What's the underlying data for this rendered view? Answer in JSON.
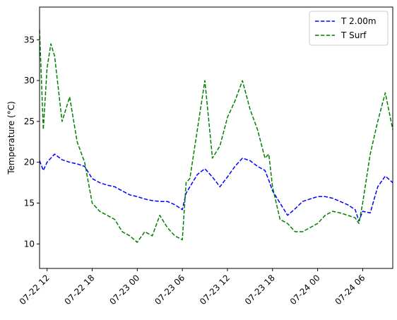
{
  "chart_data": {
    "type": "line",
    "title": "",
    "xlabel": "",
    "ylabel": "Temperature (°C)",
    "x_ticks": [
      "07-22 12",
      "07-22 18",
      "07-23 00",
      "07-23 06",
      "07-23 12",
      "07-23 18",
      "07-24 00",
      "07-24 06"
    ],
    "x_range": [
      "07-22 11",
      "07-24 10"
    ],
    "y_ticks": [
      10,
      15,
      20,
      25,
      30,
      35
    ],
    "ylim": [
      7,
      39
    ],
    "grid": false,
    "legend_position": "top-right",
    "series": [
      {
        "name": "T 2.00m",
        "color": "#0000ff",
        "style": "dashed",
        "x": [
          "07-22 11:00",
          "07-22 11:30",
          "07-22 12:00",
          "07-22 12:30",
          "07-22 13:00",
          "07-22 14:00",
          "07-22 15:00",
          "07-22 16:00",
          "07-22 17:00",
          "07-22 18:00",
          "07-22 19:00",
          "07-22 20:00",
          "07-22 21:00",
          "07-22 22:00",
          "07-22 23:00",
          "07-23 00:00",
          "07-23 01:00",
          "07-23 02:00",
          "07-23 03:00",
          "07-23 04:00",
          "07-23 05:00",
          "07-23 06:00",
          "07-23 06:30",
          "07-23 07:00",
          "07-23 08:00",
          "07-23 09:00",
          "07-23 10:00",
          "07-23 11:00",
          "07-23 12:00",
          "07-23 13:00",
          "07-23 14:00",
          "07-23 15:00",
          "07-23 16:00",
          "07-23 17:00",
          "07-23 17:30",
          "07-23 18:00",
          "07-23 19:00",
          "07-23 20:00",
          "07-23 21:00",
          "07-23 22:00",
          "07-23 23:00",
          "07-24 00:00",
          "07-24 01:00",
          "07-24 02:00",
          "07-24 03:00",
          "07-24 04:00",
          "07-24 05:00",
          "07-24 05:30",
          "07-24 06:00",
          "07-24 07:00",
          "07-24 08:00",
          "07-24 09:00",
          "07-24 10:00"
        ],
        "y": [
          20.2,
          19.0,
          20.0,
          20.5,
          21.0,
          20.3,
          20.0,
          19.8,
          19.5,
          18.0,
          17.5,
          17.2,
          17.0,
          16.5,
          16.0,
          15.8,
          15.5,
          15.3,
          15.2,
          15.2,
          14.8,
          14.2,
          16.2,
          17.0,
          18.5,
          19.2,
          18.2,
          17.0,
          18.2,
          19.5,
          20.5,
          20.2,
          19.5,
          19.0,
          17.8,
          16.5,
          15.0,
          13.5,
          14.3,
          15.2,
          15.5,
          15.8,
          15.8,
          15.6,
          15.2,
          14.8,
          14.2,
          12.8,
          14.0,
          13.8,
          17.0,
          18.3,
          17.5
        ]
      },
      {
        "name": "T Surf",
        "color": "#008000",
        "style": "dashed",
        "x": [
          "07-22 11:00",
          "07-22 11:30",
          "07-22 12:00",
          "07-22 12:30",
          "07-22 13:00",
          "07-22 14:00",
          "07-22 15:00",
          "07-22 16:00",
          "07-22 17:00",
          "07-22 18:00",
          "07-22 19:00",
          "07-22 20:00",
          "07-22 21:00",
          "07-22 22:00",
          "07-22 23:00",
          "07-23 00:00",
          "07-23 01:00",
          "07-23 02:00",
          "07-23 03:00",
          "07-23 04:00",
          "07-23 05:00",
          "07-23 06:00",
          "07-23 06:30",
          "07-23 07:00",
          "07-23 08:00",
          "07-23 09:00",
          "07-23 10:00",
          "07-23 11:00",
          "07-23 12:00",
          "07-23 13:00",
          "07-23 14:00",
          "07-23 15:00",
          "07-23 16:00",
          "07-23 17:00",
          "07-23 17:30",
          "07-23 18:00",
          "07-23 19:00",
          "07-23 20:00",
          "07-23 21:00",
          "07-23 22:00",
          "07-23 23:00",
          "07-24 00:00",
          "07-24 01:00",
          "07-24 02:00",
          "07-24 03:00",
          "07-24 04:00",
          "07-24 05:00",
          "07-24 05:30",
          "07-24 06:00",
          "07-24 07:00",
          "07-24 08:00",
          "07-24 09:00",
          "07-24 10:00"
        ],
        "y": [
          36.2,
          24.0,
          31.5,
          34.5,
          33.0,
          25.0,
          28.0,
          22.5,
          20.0,
          15.0,
          14.0,
          13.5,
          13.0,
          11.5,
          11.0,
          10.2,
          11.5,
          11.0,
          13.5,
          12.0,
          11.0,
          10.5,
          17.5,
          18.0,
          24.0,
          30.0,
          20.5,
          22.0,
          25.5,
          27.5,
          30.0,
          26.5,
          24.0,
          20.5,
          21.0,
          17.0,
          13.0,
          12.5,
          11.5,
          11.5,
          12.0,
          12.5,
          13.5,
          14.0,
          13.8,
          13.5,
          13.2,
          12.5,
          15.0,
          21.0,
          25.0,
          28.5,
          24.0
        ]
      }
    ]
  }
}
